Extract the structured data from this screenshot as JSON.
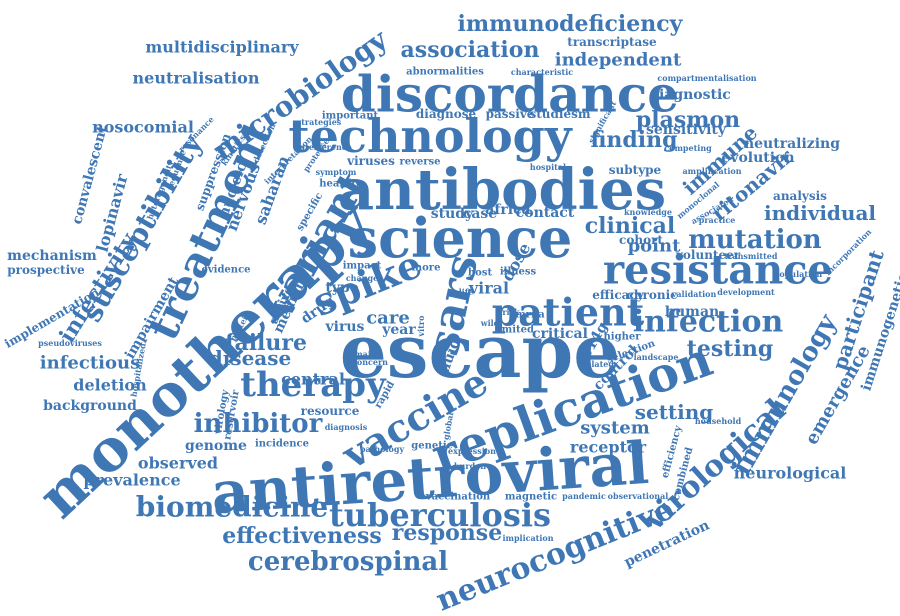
{
  "colors": {
    "word": "#3f77b5",
    "background": "#ffffff"
  },
  "words": [
    "escape",
    "monotherapy",
    "antiretroviral",
    "antibodies",
    "science",
    "discordance",
    "technology",
    "replication",
    "resistance",
    "patient",
    "treatment",
    "variant",
    "vaccine",
    "spike",
    "sars",
    "tuberculosis",
    "infection",
    "neurocognitive",
    "virological",
    "biomedicine",
    "therapy",
    "susceptibility",
    "microbiology",
    "immunology",
    "mutation",
    "cerebrospinal",
    "inhibitor",
    "effectiveness",
    "response",
    "clinical",
    "immunodeficiency",
    "association",
    "plasmon",
    "independent",
    "finding",
    "infectivity",
    "failure",
    "testing",
    "setting",
    "participant",
    "emergence",
    "immune",
    "ritonavir",
    "individual",
    "multidisciplinary",
    "neutralisation",
    "nosocomial",
    "convalescent",
    "lopinavir",
    "immunogenetic",
    "neurological",
    "infectious",
    "point",
    "system",
    "receptor",
    "deletion",
    "background",
    "prevalence",
    "observed",
    "disease",
    "central",
    "genome",
    "mechanism",
    "prospective",
    "implementation",
    "pseudoviruses",
    "impairment",
    "nervous",
    "saharan",
    "nucleic",
    "suppression",
    "inhibitor",
    "diagnostic",
    "sensitivity",
    "neutralizing",
    "evolution",
    "analysis",
    "cohort",
    "volunteer",
    "transmitted",
    "population",
    "incorporation",
    "d614g",
    "control",
    "africa",
    "contact",
    "case",
    "study",
    "care",
    "year",
    "virus",
    "drug",
    "type",
    "viral",
    "dose",
    "transcriptase",
    "abnormalities",
    "characteristic",
    "compartmentalisation",
    "passive",
    "studiesm",
    "diagnose",
    "important",
    "viruses",
    "reverse",
    "healthy",
    "symptom",
    "subtype",
    "monoclonal",
    "efficacy",
    "chronic",
    "human",
    "resource",
    "incidence",
    "vaccination",
    "magnetic",
    "pandemic",
    "observational",
    "penetration",
    "implication",
    "combined",
    "efficiency",
    "landscape",
    "critical",
    "limited",
    "fluid",
    "concern",
    "domain",
    "median",
    "active",
    "evidence",
    "reservoir",
    "virology",
    "diagnosis",
    "pathology",
    "genetic",
    "expression",
    "global",
    "rapid",
    "vitro",
    "mrna",
    "wild",
    "risk",
    "host",
    "illness",
    "more",
    "impact",
    "change",
    "life",
    "higher",
    "selection",
    "related",
    "protein",
    "resonance",
    "interpretation",
    "hospitalized",
    "heterogeneity",
    "sequence",
    "protease",
    "kinetics",
    "specific",
    "strategies",
    "interference",
    "detection",
    "knowledge",
    "validation",
    "development",
    "practice",
    "associated",
    "competing",
    "amplification",
    "significant",
    "hospital",
    "household",
    "burden"
  ]
}
